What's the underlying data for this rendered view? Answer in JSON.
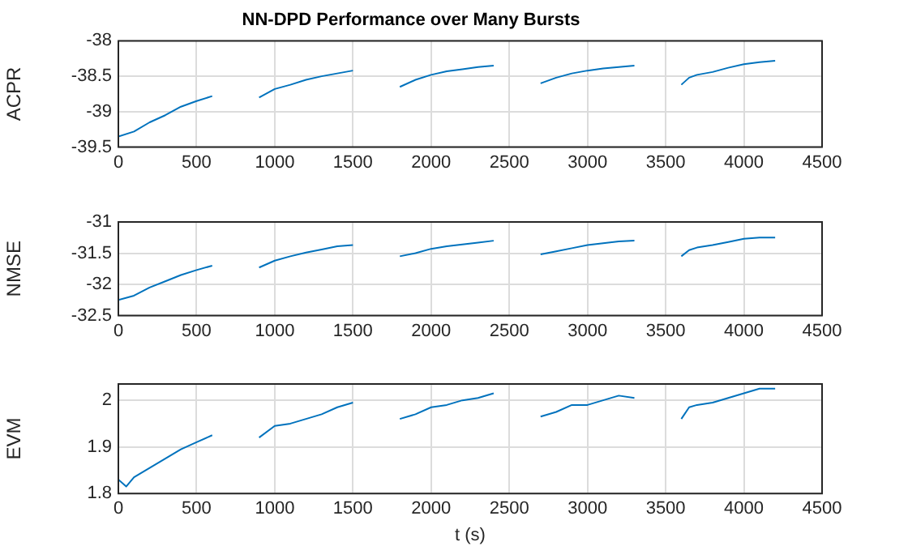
{
  "chart_data": [
    {
      "type": "line",
      "title": "NN-DPD Performance over Many Bursts",
      "ylabel": "ACPR",
      "xlim": [
        0,
        4500
      ],
      "xticks": [
        0,
        500,
        1000,
        1500,
        2000,
        2500,
        3000,
        3500,
        4000,
        4500
      ],
      "ylim": [
        -39.5,
        -38
      ],
      "yticks": [
        -39.5,
        -39,
        -38.5,
        -38
      ],
      "grid": true,
      "x": [
        0,
        100,
        200,
        300,
        400,
        500,
        600,
        750,
        900,
        1000,
        1100,
        1200,
        1300,
        1400,
        1500,
        1650,
        1800,
        1900,
        2000,
        2100,
        2200,
        2300,
        2400,
        2550,
        2700,
        2800,
        2900,
        3000,
        3100,
        3200,
        3300,
        3450,
        3600,
        3650,
        3700,
        3800,
        3900,
        4000,
        4100,
        4200
      ],
      "series": [
        {
          "color": "#0072bd",
          "values": [
            -39.35,
            -39.28,
            -39.15,
            -39.05,
            -38.93,
            -38.85,
            -38.78,
            null,
            -38.8,
            -38.68,
            -38.62,
            -38.55,
            -38.5,
            -38.46,
            -38.42,
            null,
            -38.65,
            -38.55,
            -38.48,
            -38.43,
            -38.4,
            -38.37,
            -38.35,
            null,
            -38.6,
            -38.52,
            -38.46,
            -38.42,
            -38.39,
            -38.37,
            -38.35,
            null,
            -38.62,
            -38.52,
            -38.48,
            -38.44,
            -38.38,
            -38.33,
            -38.3,
            -38.28
          ]
        }
      ]
    },
    {
      "type": "line",
      "ylabel": "NMSE",
      "xlim": [
        0,
        4500
      ],
      "xticks": [
        0,
        500,
        1000,
        1500,
        2000,
        2500,
        3000,
        3500,
        4000,
        4500
      ],
      "ylim": [
        -32.5,
        -31
      ],
      "yticks": [
        -32.5,
        -32,
        -31.5,
        -31
      ],
      "grid": true,
      "x": [
        0,
        100,
        200,
        300,
        400,
        500,
        600,
        750,
        900,
        1000,
        1100,
        1200,
        1300,
        1400,
        1500,
        1650,
        1800,
        1900,
        2000,
        2100,
        2200,
        2300,
        2400,
        2550,
        2700,
        2800,
        2900,
        3000,
        3100,
        3200,
        3300,
        3450,
        3600,
        3650,
        3700,
        3800,
        3900,
        4000,
        4100,
        4200
      ],
      "series": [
        {
          "color": "#0072bd",
          "values": [
            -32.25,
            -32.18,
            -32.05,
            -31.95,
            -31.85,
            -31.77,
            -31.7,
            null,
            -31.73,
            -31.62,
            -31.55,
            -31.49,
            -31.44,
            -31.39,
            -31.37,
            null,
            -31.55,
            -31.5,
            -31.43,
            -31.39,
            -31.36,
            -31.33,
            -31.3,
            null,
            -31.52,
            -31.47,
            -31.42,
            -31.37,
            -31.34,
            -31.31,
            -31.3,
            null,
            -31.55,
            -31.45,
            -31.41,
            -31.37,
            -31.32,
            -31.27,
            -31.25,
            -31.25
          ]
        }
      ]
    },
    {
      "type": "line",
      "ylabel": "EVM",
      "xlabel": "t (s)",
      "xlim": [
        0,
        4500
      ],
      "xticks": [
        0,
        500,
        1000,
        1500,
        2000,
        2500,
        3000,
        3500,
        4000,
        4500
      ],
      "ylim": [
        1.8,
        2.035
      ],
      "yticks": [
        1.8,
        1.9,
        2
      ],
      "grid": true,
      "x": [
        0,
        50,
        100,
        200,
        300,
        400,
        500,
        600,
        750,
        900,
        1000,
        1100,
        1200,
        1300,
        1400,
        1500,
        1650,
        1800,
        1900,
        2000,
        2100,
        2200,
        2300,
        2400,
        2550,
        2700,
        2800,
        2900,
        3000,
        3100,
        3200,
        3300,
        3450,
        3600,
        3650,
        3700,
        3800,
        3900,
        4000,
        4100,
        4200
      ],
      "series": [
        {
          "color": "#0072bd",
          "values": [
            1.83,
            1.815,
            1.835,
            1.855,
            1.875,
            1.895,
            1.91,
            1.925,
            null,
            1.92,
            1.945,
            1.95,
            1.96,
            1.97,
            1.985,
            1.995,
            null,
            1.96,
            1.97,
            1.985,
            1.99,
            2.0,
            2.005,
            2.015,
            null,
            1.965,
            1.975,
            1.99,
            1.99,
            2.0,
            2.01,
            2.005,
            null,
            1.96,
            1.985,
            1.99,
            1.995,
            2.005,
            2.015,
            2.025,
            2.025
          ]
        }
      ]
    }
  ]
}
